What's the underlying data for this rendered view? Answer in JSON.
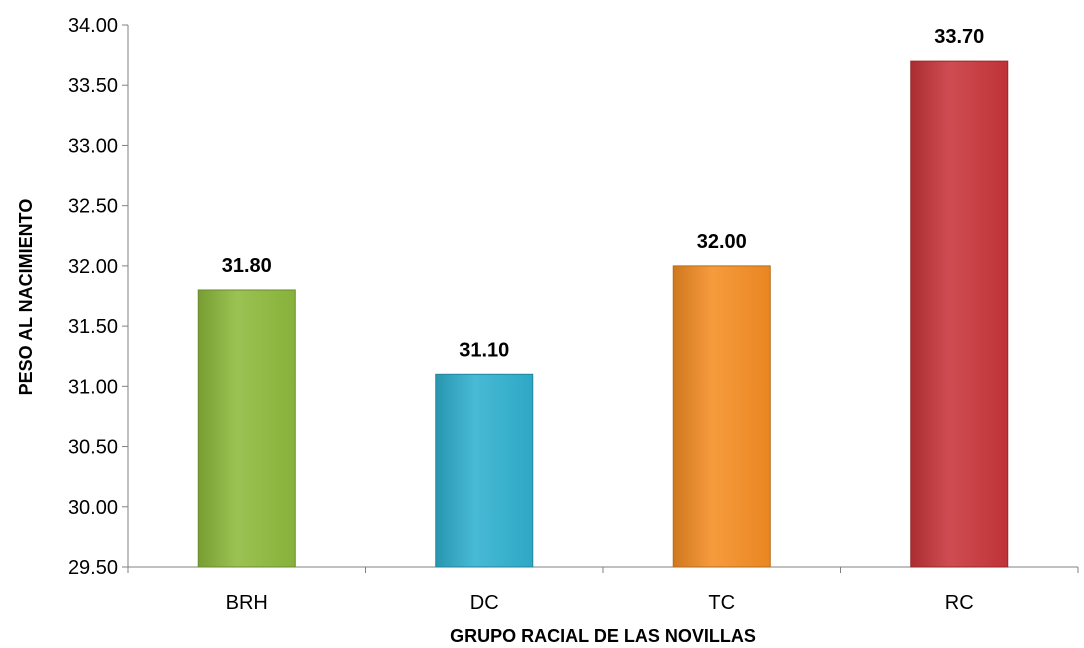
{
  "chart_data": {
    "type": "bar",
    "categories": [
      "BRH",
      "DC",
      "TC",
      "RC"
    ],
    "values": [
      31.8,
      31.1,
      32.0,
      33.7
    ],
    "data_labels": [
      "31.80",
      "31.10",
      "32.00",
      "33.70"
    ],
    "xlabel": "GRUPO RACIAL DE LAS NOVILLAS",
    "ylabel": "PESO AL NACIMIENTO",
    "ylim": [
      29.5,
      34.0
    ],
    "ytick_step": 0.5,
    "ytick_labels": [
      "29.50",
      "30.00",
      "30.50",
      "31.00",
      "31.50",
      "32.00",
      "32.50",
      "33.00",
      "33.50",
      "34.00"
    ],
    "bar_colors": [
      "#8dba3c",
      "#2fb1cf",
      "#f58d23",
      "#c9353a"
    ],
    "grid": false,
    "legend": "none"
  }
}
